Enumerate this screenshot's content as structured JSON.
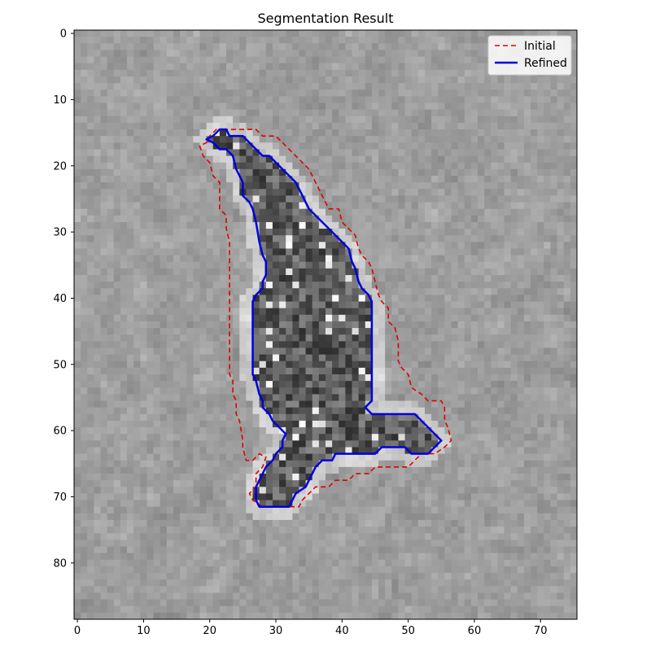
{
  "chart_data": {
    "type": "heatmap",
    "title": "Segmentation Result",
    "xlabel": "",
    "ylabel": "",
    "image_shape": [
      89,
      76
    ],
    "xlim": [
      -0.5,
      75.5
    ],
    "ylim": [
      88.5,
      -0.5
    ],
    "x_ticks": [
      0,
      10,
      20,
      30,
      40,
      50,
      60,
      70
    ],
    "y_ticks": [
      0,
      10,
      20,
      30,
      40,
      50,
      60,
      70,
      80
    ],
    "colormap": "gray",
    "grid": false,
    "legend_position": "upper right",
    "series": [
      {
        "name": "Initial",
        "color": "#e00000",
        "style": "dashed",
        "points": [
          [
            22,
            14.5
          ],
          [
            27,
            14.5
          ],
          [
            28,
            15.5
          ],
          [
            30,
            15.5
          ],
          [
            31,
            16.5
          ],
          [
            32,
            17.5
          ],
          [
            33,
            18.5
          ],
          [
            34,
            19.5
          ],
          [
            35,
            20.5
          ],
          [
            35.5,
            21.5
          ],
          [
            36,
            22.5
          ],
          [
            37,
            24.5
          ],
          [
            37.5,
            25.5
          ],
          [
            38,
            26.5
          ],
          [
            39.5,
            26.5
          ],
          [
            40,
            28.5
          ],
          [
            41,
            29.5
          ],
          [
            42,
            30.5
          ],
          [
            42.5,
            32.5
          ],
          [
            43,
            33.5
          ],
          [
            44,
            34.5
          ],
          [
            44.5,
            35.5
          ],
          [
            45,
            37.5
          ],
          [
            45.5,
            39.5
          ],
          [
            46,
            40.5
          ],
          [
            47,
            41.5
          ],
          [
            47,
            43.5
          ],
          [
            48,
            44.5
          ],
          [
            48.5,
            46.5
          ],
          [
            48.5,
            49.5
          ],
          [
            49,
            50.5
          ],
          [
            50,
            51.5
          ],
          [
            50.5,
            53.5
          ],
          [
            52,
            54.5
          ],
          [
            53,
            55.5
          ],
          [
            55,
            55.5
          ],
          [
            55.5,
            56.5
          ],
          [
            55.5,
            58.5
          ],
          [
            56,
            59.5
          ],
          [
            56.5,
            61.5
          ],
          [
            55.5,
            62.5
          ],
          [
            54,
            63.5
          ],
          [
            52,
            63.5
          ],
          [
            51,
            64.5
          ],
          [
            50,
            65.5
          ],
          [
            45,
            65.5
          ],
          [
            44,
            66.5
          ],
          [
            42,
            66.5
          ],
          [
            41,
            67.5
          ],
          [
            39,
            67.5
          ],
          [
            38,
            68.5
          ],
          [
            36,
            68.5
          ],
          [
            35,
            69.5
          ],
          [
            34,
            70.5
          ],
          [
            33.5,
            71.5
          ],
          [
            28,
            71.5
          ],
          [
            26.5,
            70.5
          ],
          [
            26,
            69.5
          ],
          [
            27,
            68.5
          ],
          [
            27,
            66.5
          ],
          [
            28,
            65.5
          ],
          [
            28.5,
            64
          ],
          [
            27.5,
            63.5
          ],
          [
            26.5,
            64.5
          ],
          [
            25.5,
            64.5
          ],
          [
            25,
            62.5
          ],
          [
            25,
            61.5
          ],
          [
            24.5,
            58.5
          ],
          [
            24,
            57.5
          ],
          [
            24,
            55.5
          ],
          [
            23.5,
            54.5
          ],
          [
            23.5,
            52.5
          ],
          [
            23,
            51.5
          ],
          [
            23,
            40.5
          ],
          [
            23,
            31.5
          ],
          [
            22.5,
            29.5
          ],
          [
            22.5,
            27.5
          ],
          [
            21.5,
            26.5
          ],
          [
            21.5,
            22.5
          ],
          [
            20.5,
            21.5
          ],
          [
            20,
            19.5
          ],
          [
            19,
            18.5
          ],
          [
            18.5,
            17
          ],
          [
            19.5,
            16.5
          ],
          [
            20,
            15.5
          ],
          [
            21,
            14.5
          ],
          [
            22,
            14.5
          ]
        ]
      },
      {
        "name": "Refined",
        "color": "#0000dd",
        "style": "solid",
        "points": [
          [
            20.5,
            15.5
          ],
          [
            21.5,
            14.5
          ],
          [
            22.5,
            14.5
          ],
          [
            23,
            15.5
          ],
          [
            25,
            15.5
          ],
          [
            26,
            16.5
          ],
          [
            27,
            17.5
          ],
          [
            28,
            18.5
          ],
          [
            29,
            18.5
          ],
          [
            30,
            19.5
          ],
          [
            31,
            20.5
          ],
          [
            32,
            21.5
          ],
          [
            33,
            22.5
          ],
          [
            34,
            24.5
          ],
          [
            35,
            26.5
          ],
          [
            36,
            27.5
          ],
          [
            37,
            28.5
          ],
          [
            38,
            29.5
          ],
          [
            39,
            30.5
          ],
          [
            40,
            31.5
          ],
          [
            41,
            32.5
          ],
          [
            41.5,
            34.5
          ],
          [
            42,
            35.5
          ],
          [
            42.5,
            37.5
          ],
          [
            43,
            38.5
          ],
          [
            44,
            39.5
          ],
          [
            44.5,
            40.5
          ],
          [
            44.5,
            55.5
          ],
          [
            43.5,
            56.5
          ],
          [
            44.5,
            57.5
          ],
          [
            51,
            57.5
          ],
          [
            52,
            58.5
          ],
          [
            53,
            59.5
          ],
          [
            54,
            60.5
          ],
          [
            55,
            61.5
          ],
          [
            54,
            62.5
          ],
          [
            53,
            63.5
          ],
          [
            50.5,
            63.5
          ],
          [
            49.5,
            62.5
          ],
          [
            46,
            62.5
          ],
          [
            45,
            63.5
          ],
          [
            39,
            63.5
          ],
          [
            38.5,
            64.5
          ],
          [
            37,
            64.5
          ],
          [
            36,
            65.5
          ],
          [
            35.5,
            66.5
          ],
          [
            35,
            67.5
          ],
          [
            34.5,
            68.5
          ],
          [
            33,
            69.5
          ],
          [
            32.5,
            70.5
          ],
          [
            32,
            71.5
          ],
          [
            27.5,
            71.5
          ],
          [
            27,
            70.5
          ],
          [
            27,
            68.5
          ],
          [
            28,
            66.5
          ],
          [
            28.5,
            65.5
          ],
          [
            29.5,
            64.5
          ],
          [
            30,
            63.5
          ],
          [
            31,
            62.5
          ],
          [
            31,
            61.5
          ],
          [
            31.5,
            60.5
          ],
          [
            30.5,
            59.5
          ],
          [
            29.5,
            58.5
          ],
          [
            29,
            57.5
          ],
          [
            28,
            56.5
          ],
          [
            28,
            55.5
          ],
          [
            27.5,
            54.5
          ],
          [
            27,
            52.5
          ],
          [
            26.5,
            51.5
          ],
          [
            26.5,
            40.5
          ],
          [
            27,
            39.5
          ],
          [
            28,
            38.5
          ],
          [
            28,
            37.5
          ],
          [
            28.5,
            36.5
          ],
          [
            28.5,
            34.5
          ],
          [
            28,
            33.5
          ],
          [
            27.5,
            31.5
          ],
          [
            27,
            28.5
          ],
          [
            26.5,
            26.5
          ],
          [
            26,
            25.5
          ],
          [
            25,
            24.5
          ],
          [
            25,
            22.5
          ],
          [
            24.5,
            21.5
          ],
          [
            24,
            20.5
          ],
          [
            23.5,
            18.5
          ],
          [
            22.5,
            17.5
          ],
          [
            21.5,
            17.5
          ],
          [
            20.5,
            16.5
          ],
          [
            19.5,
            16
          ],
          [
            20.5,
            15.5
          ]
        ]
      }
    ],
    "image_description_blobs": {
      "background_gray": 0.62,
      "noise_seed": 7
    }
  }
}
